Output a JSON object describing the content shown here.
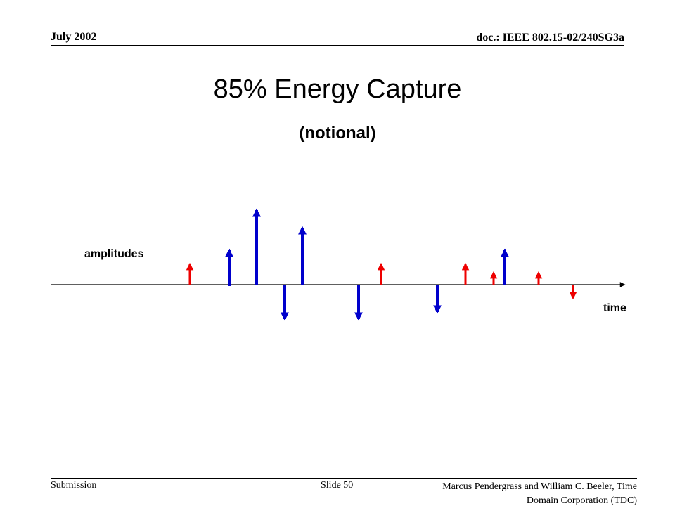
{
  "header": {
    "date": "July 2002",
    "doc": "doc.: IEEE 802.15-02/240SG3a"
  },
  "title": "85% Energy Capture",
  "subtitle": "(notional)",
  "diagram": {
    "y_label": "amplitudes",
    "x_label": "time"
  },
  "footer": {
    "left": "Submission",
    "center": "Slide 50",
    "right": "Marcus Pendergrass and William C. Beeler, Time Domain Corporation (TDC)"
  }
}
